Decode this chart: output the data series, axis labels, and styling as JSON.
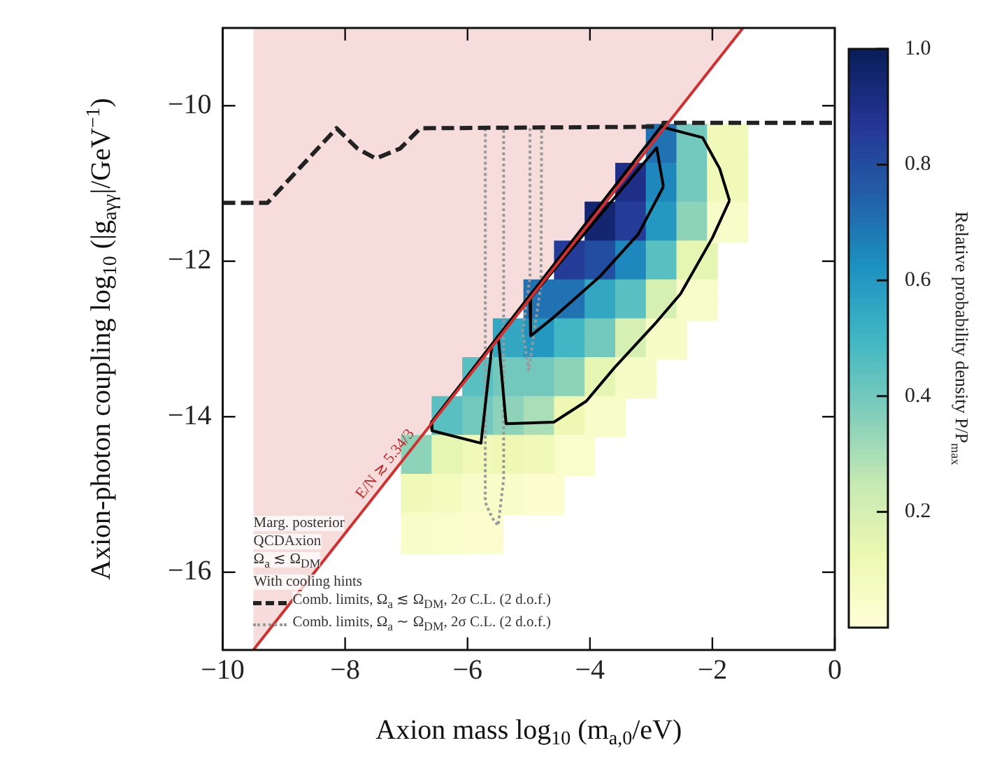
{
  "chart_data": {
    "type": "line",
    "xlabel": "Axion mass log$_{10}$ (m$_{a,0}$/eV)",
    "ylabel": "Axion-photon coupling log$_{10}$ (|g$_{aγγ}$|/GeV$^{−1}$)",
    "clabel": "Relative probability density P/P$_{max}$",
    "xlim": [
      -10,
      0
    ],
    "xticks": [
      {
        "value": -10,
        "label": "−10"
      },
      {
        "value": -8,
        "label": "−8"
      },
      {
        "value": -6,
        "label": "−6"
      },
      {
        "value": -4,
        "label": "−4"
      },
      {
        "value": -2,
        "label": "−2"
      },
      {
        "value": 0,
        "label": "0"
      }
    ],
    "ylim": [
      -17,
      -9
    ],
    "yticks": [
      {
        "value": -10,
        "label": "−10"
      },
      {
        "value": -12,
        "label": "−12"
      },
      {
        "value": -14,
        "label": "−14"
      },
      {
        "value": -16,
        "label": "−16"
      }
    ],
    "clim": [
      0,
      1
    ],
    "cticks": [
      0.2,
      0.4,
      0.6,
      0.8,
      {
        "value": 1,
        "label": "1.0"
      }
    ],
    "legend": "bottom left",
    "annotations": [
      {
        "text": "E/N ≳ 5.34/3",
        "x": -7.2,
        "y": -14.7
      },
      "Marg. posterior",
      "QCDAxion",
      "Ω$_{a}$ ≲ Ω$_{DM}$",
      "With cooling hints"
    ],
    "series": [
      {
        "type": "area",
        "color": "#d03030",
        "marker": "none",
        "line_style": "solid",
        "x": [
          -9.5,
          -1.5
        ],
        "values": [
          -17,
          -9
        ]
      },
      {
        "type": "scatter",
        "marker": "square",
        "x": [
          -6.75,
          -6.75,
          -6.75,
          -6.25,
          -6.25,
          -6.25,
          -6.25,
          -5.75,
          -5.75,
          -5.75,
          -5.75,
          -5.75,
          -5.25,
          -5.25,
          -5.25,
          -5.25,
          -5.25,
          -4.75,
          -4.75,
          -4.75,
          -4.75,
          -4.75,
          -4.75,
          -4.25,
          -4.25,
          -4.25,
          -4.25,
          -4.25,
          -4.25,
          -3.75,
          -3.75,
          -3.75,
          -3.75,
          -3.75,
          -3.75,
          -3.25,
          -3.25,
          -3.25,
          -3.25,
          -3.25,
          -3.25,
          -2.75,
          -2.75,
          -2.75,
          -2.75,
          -2.75,
          -2.75,
          -2.25,
          -2.25,
          -2.25,
          -2.25,
          -2.25,
          -1.75,
          -1.75,
          -1.75
        ],
        "values": [
          -14.5,
          -15,
          -15.5,
          -14,
          -14.5,
          -15,
          -15.5,
          -13.5,
          -14,
          -14.5,
          -15,
          -15.5,
          -13,
          -13.5,
          -14,
          -14.5,
          -15,
          -12.5,
          -13,
          -13.5,
          -14,
          -14.5,
          -15,
          -12,
          -12.5,
          -13,
          -13.5,
          -14,
          -14.5,
          -11.5,
          -12,
          -12.5,
          -13,
          -13.5,
          -14,
          -11,
          -11.5,
          -12,
          -12.5,
          -13,
          -13.5,
          -10.5,
          -11,
          -11.5,
          -12,
          -12.5,
          -13,
          -10.5,
          -11,
          -11.5,
          -12,
          -12.5,
          -10.5,
          -11,
          -11.5
        ],
        "colors": [
          "#8dd3ba",
          "#f1f9b9",
          "#f8fcc9",
          "#5abfc0",
          "#e5f5b2",
          "#f3fbbf",
          "#f9fdcc",
          "#5abfc0",
          "#73c8bd",
          "#f1f9b9",
          "#f8fcc9",
          "#fbfdcf",
          "#33a7c2",
          "#73c8bd",
          "#8dd3ba",
          "#eef8b3",
          "#f8fcc9",
          "#2072b2",
          "#2498c1",
          "#73c8bd",
          "#aadeb7",
          "#f1f9b9",
          "#fbfdcf",
          "#243c98",
          "#2072b2",
          "#41b6c4",
          "#8dd3ba",
          "#eef8b3",
          "#f9fdcc",
          "#142670",
          "#234da0",
          "#33a7c2",
          "#73c8bd",
          "#e5f5b2",
          "#f8fcc9",
          "#1f2f88",
          "#243c98",
          "#1e87bb",
          "#5abfc0",
          "#d6efb3",
          "#f6fcc6",
          "#2072b2",
          "#1e87bb",
          "#2498c1",
          "#5abfc0",
          "#d6efb3",
          "#f6fcc6",
          "#73c8bd",
          "#73c8bd",
          "#8dd3ba",
          "#e5f5b2",
          "#f8fcc9",
          "#f1f9b9",
          "#f1f9b9",
          "#f8fcc9"
        ],
        "cvalues": [
          0.35,
          0.1,
          0.05,
          0.45,
          0.15,
          0.08,
          0.04,
          0.45,
          0.4,
          0.1,
          0.05,
          0.03,
          0.55,
          0.4,
          0.35,
          0.12,
          0.05,
          0.7,
          0.6,
          0.4,
          0.3,
          0.1,
          0.03,
          0.85,
          0.7,
          0.5,
          0.35,
          0.12,
          0.04,
          0.95,
          0.8,
          0.55,
          0.4,
          0.15,
          0.05,
          0.9,
          0.85,
          0.65,
          0.45,
          0.2,
          0.06,
          0.7,
          0.65,
          0.6,
          0.45,
          0.2,
          0.06,
          0.4,
          0.4,
          0.35,
          0.15,
          0.05,
          0.1,
          0.1,
          0.05
        ]
      },
      {
        "color": "#000000",
        "marker": "none",
        "line_style": "solid",
        "x": [
          -6.6,
          -2.84,
          -2.16,
          -1.88,
          -1.72
        ],
        "values": [
          -14.08,
          -10.27,
          -10.41,
          -10.81,
          -11.22
        ]
      },
      {
        "color": "#000000",
        "marker": "none",
        "line_style": "solid",
        "x": [
          -6.6,
          -6.58,
          -5.78,
          -5.6,
          -5.5,
          -5.37,
          -4.59,
          -4.06,
          -3.6,
          -2.91,
          -2.52,
          -2.0,
          -1.72
        ],
        "values": [
          -14.08,
          -14.18,
          -14.34,
          -13.08,
          -12.96,
          -14.09,
          -14.07,
          -13.8,
          -13.37,
          -12.78,
          -12.42,
          -11.7,
          -11.22
        ]
      },
      {
        "color": "#000000",
        "marker": "none",
        "line_style": "solid",
        "x": [
          -4.98,
          -2.91,
          -2.8
        ],
        "values": [
          -12.48,
          -10.54,
          -11.04
        ]
      },
      {
        "color": "#000000",
        "marker": "none",
        "line_style": "solid",
        "x": [
          -4.98,
          -4.97,
          -4.59,
          -3.83,
          -3.21,
          -2.8
        ],
        "values": [
          -12.48,
          -12.96,
          -12.72,
          -12.19,
          -11.65,
          -11.04
        ]
      },
      {
        "name": "Comb. limits, Ω$_{a}$ ≲ Ω$_{DM}$, 2σ C.L. (2 d.o.f.)",
        "color": "#222222",
        "marker": "none",
        "line_style": "dashed",
        "x": [
          -10,
          -9.27,
          -8.14,
          -7.8,
          -7.5,
          -7.1,
          -6.77,
          -2.8,
          -2.8,
          0
        ],
        "values": [
          -11.25,
          -11.25,
          -10.29,
          -10.55,
          -10.68,
          -10.55,
          -10.29,
          -10.27,
          -10.22,
          -10.22
        ]
      },
      {
        "name": "Comb. limits, Ω$_{a}$ ∼ Ω$_{DM}$, 2σ C.L. (2 d.o.f.)",
        "color": "#999999",
        "marker": "none",
        "line_style": "dotted",
        "x": [
          -5.71,
          -5.71,
          -5.6,
          -5.5,
          -5.41,
          -5.41,
          null,
          -4.98,
          -4.98,
          -5.1,
          -5.0,
          -4.8,
          -4.79
        ],
        "values": [
          -10.29,
          -15.1,
          -15.3,
          -15.4,
          -14.8,
          -10.29,
          null,
          -10.29,
          -12.2,
          -12.9,
          -13.4,
          -12.3,
          -10.29
        ]
      }
    ]
  }
}
